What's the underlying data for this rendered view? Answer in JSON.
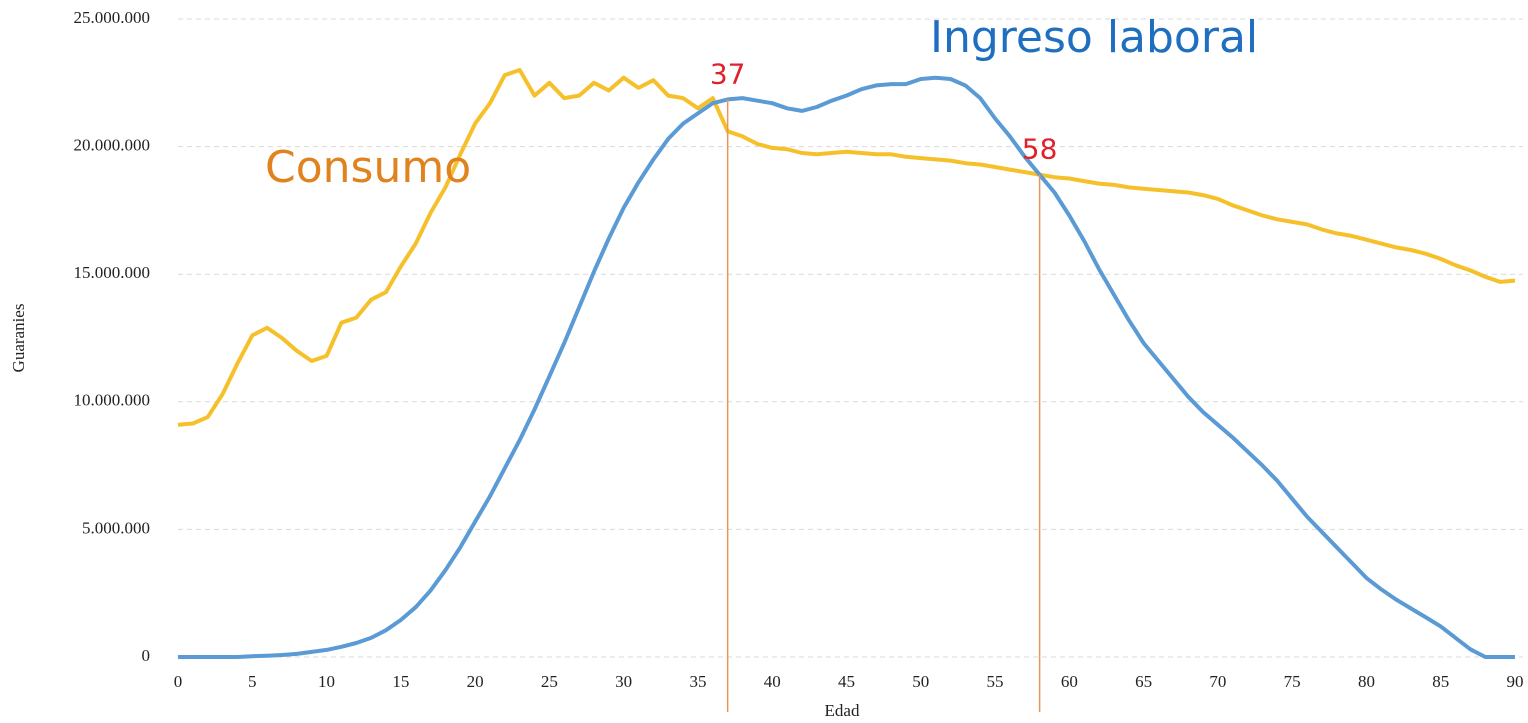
{
  "chart_data": {
    "type": "line",
    "x_label": "Edad",
    "y_label": "Guaranies",
    "x": [
      0,
      1,
      2,
      3,
      4,
      5,
      6,
      7,
      8,
      9,
      10,
      11,
      12,
      13,
      14,
      15,
      16,
      17,
      18,
      19,
      20,
      21,
      22,
      23,
      24,
      25,
      26,
      27,
      28,
      29,
      30,
      31,
      32,
      33,
      34,
      35,
      36,
      37,
      38,
      39,
      40,
      41,
      42,
      43,
      44,
      45,
      46,
      47,
      48,
      49,
      50,
      51,
      52,
      53,
      54,
      55,
      56,
      57,
      58,
      59,
      60,
      61,
      62,
      63,
      64,
      65,
      66,
      67,
      68,
      69,
      70,
      71,
      72,
      73,
      74,
      75,
      76,
      77,
      78,
      79,
      80,
      81,
      82,
      83,
      84,
      85,
      86,
      87,
      88,
      89,
      90
    ],
    "series": [
      {
        "name": "Consumo",
        "color": "#f5c02a",
        "values": [
          9100000.0,
          9150000.0,
          9400000.0,
          10300000.0,
          11500000.0,
          12600000.0,
          12900000.0,
          12500000.0,
          12000000.0,
          11600000.0,
          11800000.0,
          13100000.0,
          13300000.0,
          14000000.0,
          14300000.0,
          15300000.0,
          16200000.0,
          17400000.0,
          18400000.0,
          19700000.0,
          20900000.0,
          21700000.0,
          22800000.0,
          23000000.0,
          22000000.0,
          22500000.0,
          21900000.0,
          22000000.0,
          22500000.0,
          22200000.0,
          22700000.0,
          22300000.0,
          22600000.0,
          22000000.0,
          21900000.0,
          21500000.0,
          21900000.0,
          20600000.0,
          20400000.0,
          20100000.0,
          19950000.0,
          19900000.0,
          19750000.0,
          19700000.0,
          19750000.0,
          19800000.0,
          19750000.0,
          19700000.0,
          19700000.0,
          19600000.0,
          19550000.0,
          19500000.0,
          19450000.0,
          19350000.0,
          19300000.0,
          19200000.0,
          19100000.0,
          19000000.0,
          18900000.0,
          18800000.0,
          18750000.0,
          18650000.0,
          18550000.0,
          18500000.0,
          18400000.0,
          18350000.0,
          18300000.0,
          18250000.0,
          18200000.0,
          18100000.0,
          17950000.0,
          17700000.0,
          17500000.0,
          17300000.0,
          17150000.0,
          17050000.0,
          16950000.0,
          16750000.0,
          16600000.0,
          16500000.0,
          16350000.0,
          16200000.0,
          16050000.0,
          15950000.0,
          15800000.0,
          15600000.0,
          15350000.0,
          15150000.0,
          14900000.0,
          14700000.0,
          14750000.0
        ]
      },
      {
        "name": "Ingreso laboral",
        "color": "#5b9bd5",
        "values": [
          0,
          0,
          0,
          0,
          0,
          30000.0,
          50000.0,
          80000.0,
          120000.0,
          200000.0,
          280000.0,
          400000.0,
          550000.0,
          750000.0,
          1050000.0,
          1450000.0,
          1950000.0,
          2600000.0,
          3400000.0,
          4300000.0,
          5300000.0,
          6300000.0,
          7400000.0,
          8500000.0,
          9700000.0,
          11000000.0,
          12300000.0,
          13700000.0,
          15100000.0,
          16400000.0,
          17600000.0,
          18600000.0,
          19500000.0,
          20300000.0,
          20900000.0,
          21300000.0,
          21700000.0,
          21850000.0,
          21900000.0,
          21800000.0,
          21700000.0,
          21500000.0,
          21400000.0,
          21550000.0,
          21800000.0,
          22000000.0,
          22250000.0,
          22400000.0,
          22450000.0,
          22450000.0,
          22650000.0,
          22700000.0,
          22650000.0,
          22400000.0,
          21900000.0,
          21100000.0,
          20400000.0,
          19600000.0,
          18900000.0,
          18200000.0,
          17300000.0,
          16300000.0,
          15200000.0,
          14200000.0,
          13200000.0,
          12300000.0,
          11600000.0,
          10900000.0,
          10200000.0,
          9600000.0,
          9100000.0,
          8600000.0,
          8050000.0,
          7500000.0,
          6900000.0,
          6200000.0,
          5500000.0,
          4900000.0,
          4300000.0,
          3700000.0,
          3100000.0,
          2650000.0,
          2250000.0,
          1900000.0,
          1550000.0,
          1200000.0,
          750000.0,
          300000.0,
          0,
          0,
          0
        ]
      }
    ],
    "markers": [
      37,
      58
    ],
    "xlim": [
      0,
      90
    ],
    "xticks": [
      0,
      5,
      10,
      15,
      20,
      25,
      30,
      35,
      40,
      45,
      50,
      55,
      60,
      65,
      70,
      75,
      80,
      85,
      90
    ],
    "ylim": [
      0,
      25000000
    ],
    "yticks": [
      0,
      {
        "value": 5000000,
        "label": "5.000.000"
      },
      {
        "value": 10000000,
        "label": "10.000.000"
      },
      {
        "value": 15000000,
        "label": "15.000.000"
      },
      {
        "value": 20000000,
        "label": "20.000.000"
      },
      {
        "value": 25000000,
        "label": "25.000.000"
      }
    ],
    "grid": true
  }
}
